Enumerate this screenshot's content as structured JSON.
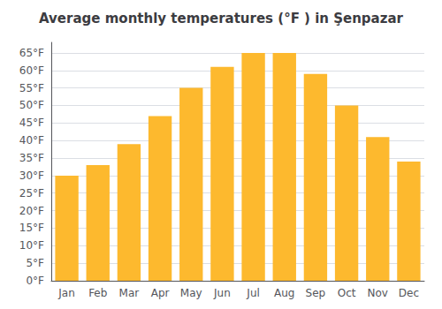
{
  "chart_data": {
    "type": "bar",
    "title": "Average monthly temperatures (°F ) in Şenpazar",
    "categories": [
      "Jan",
      "Feb",
      "Mar",
      "Apr",
      "May",
      "Jun",
      "Jul",
      "Aug",
      "Sep",
      "Oct",
      "Nov",
      "Dec"
    ],
    "values": [
      30,
      33,
      39,
      47,
      55,
      61,
      65,
      65,
      59,
      50,
      41,
      34
    ],
    "color": "#FDB92E",
    "ylim": [
      0,
      68
    ],
    "yticks": [
      {
        "value": 0,
        "label": "0°F"
      },
      {
        "value": 5,
        "label": "5°F"
      },
      {
        "value": 10,
        "label": "10°F"
      },
      {
        "value": 15,
        "label": "15°F"
      },
      {
        "value": 20,
        "label": "20°F"
      },
      {
        "value": 25,
        "label": "25°F"
      },
      {
        "value": 30,
        "label": "30°F"
      },
      {
        "value": 35,
        "label": "35°F"
      },
      {
        "value": 40,
        "label": "40°F"
      },
      {
        "value": 45,
        "label": "45°F"
      },
      {
        "value": 50,
        "label": "50°F"
      },
      {
        "value": 55,
        "label": "55°F"
      },
      {
        "value": 60,
        "label": "60°F"
      },
      {
        "value": 65,
        "label": "65°F"
      }
    ],
    "grid": true
  }
}
